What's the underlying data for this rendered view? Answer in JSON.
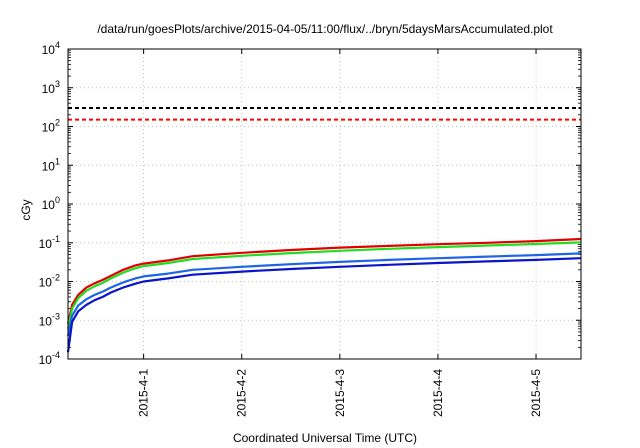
{
  "chart_data": {
    "type": "line",
    "title": "/data/run/goesPlots/archive/2015-04-05/11:00/flux/../bryn/5daysMarsAccumulated.plot",
    "xlabel": "Coordinated Universal Time (UTC)",
    "ylabel": "cGy",
    "yscale": "log",
    "ylim": [
      0.0001,
      10000
    ],
    "xlim": [
      "2015-03-31 05:30",
      "2015-04-05 11:00"
    ],
    "grid": true,
    "legend": "none",
    "x_ticks": [
      "2015-4-1",
      "2015-4-2",
      "2015-4-3",
      "2015-4-4",
      "2015-4-5"
    ],
    "y_ticks": [
      {
        "value": 0.0001,
        "base": "10",
        "exp": "-4"
      },
      {
        "value": 0.001,
        "base": "10",
        "exp": "-3"
      },
      {
        "value": 0.01,
        "base": "10",
        "exp": "-2"
      },
      {
        "value": 0.1,
        "base": "10",
        "exp": "-1"
      },
      {
        "value": 1,
        "base": "10",
        "exp": "0"
      },
      {
        "value": 10,
        "base": "10",
        "exp": "1"
      },
      {
        "value": 100,
        "base": "10",
        "exp": "2"
      },
      {
        "value": 1000,
        "base": "10",
        "exp": "3"
      },
      {
        "value": 10000,
        "base": "10",
        "exp": "4"
      }
    ],
    "reference_lines": [
      {
        "y": 300,
        "color": "#000000",
        "style": "dashed"
      },
      {
        "y": 150,
        "color": "#ff0000",
        "style": "dashed"
      }
    ],
    "series": [
      {
        "color": "#e00000",
        "x": [
          "2015-03-31 05:30",
          "2015-03-31 06:30",
          "2015-03-31 08:00",
          "2015-03-31 10:00",
          "2015-03-31 12:00",
          "2015-03-31 14:00",
          "2015-03-31 16:00",
          "2015-03-31 19:00",
          "2015-03-31 22:00",
          "2015-04-01 00:00",
          "2015-04-01 06:00",
          "2015-04-01 12:00",
          "2015-04-02 00:00",
          "2015-04-02 12:00",
          "2015-04-03 00:00",
          "2015-04-03 12:00",
          "2015-04-04 00:00",
          "2015-04-04 12:00",
          "2015-04-05 00:00",
          "2015-04-05 11:00"
        ],
        "y": [
          0.0008,
          0.0025,
          0.0045,
          0.007,
          0.009,
          0.011,
          0.014,
          0.02,
          0.026,
          0.029,
          0.035,
          0.045,
          0.055,
          0.065,
          0.075,
          0.083,
          0.092,
          0.1,
          0.11,
          0.125
        ]
      },
      {
        "color": "#22dd22",
        "x": [
          "2015-03-31 05:30",
          "2015-03-31 06:30",
          "2015-03-31 08:00",
          "2015-03-31 10:00",
          "2015-03-31 12:00",
          "2015-03-31 14:00",
          "2015-03-31 16:00",
          "2015-03-31 19:00",
          "2015-03-31 22:00",
          "2015-04-01 00:00",
          "2015-04-01 06:00",
          "2015-04-01 12:00",
          "2015-04-02 00:00",
          "2015-04-02 12:00",
          "2015-04-03 00:00",
          "2015-04-03 12:00",
          "2015-04-04 00:00",
          "2015-04-04 12:00",
          "2015-04-05 00:00",
          "2015-04-05 11:00"
        ],
        "y": [
          0.0006,
          0.002,
          0.0037,
          0.0058,
          0.0075,
          0.0092,
          0.012,
          0.017,
          0.022,
          0.025,
          0.03,
          0.038,
          0.046,
          0.054,
          0.062,
          0.07,
          0.077,
          0.085,
          0.093,
          0.102
        ]
      },
      {
        "color": "#1e64e6",
        "x": [
          "2015-03-31 05:30",
          "2015-03-31 06:30",
          "2015-03-31 08:00",
          "2015-03-31 10:00",
          "2015-03-31 12:00",
          "2015-03-31 14:00",
          "2015-03-31 16:00",
          "2015-03-31 19:00",
          "2015-03-31 22:00",
          "2015-04-01 00:00",
          "2015-04-01 06:00",
          "2015-04-01 12:00",
          "2015-04-02 00:00",
          "2015-04-02 12:00",
          "2015-04-03 00:00",
          "2015-04-03 12:00",
          "2015-04-04 00:00",
          "2015-04-04 12:00",
          "2015-04-05 00:00",
          "2015-04-05 11:00"
        ],
        "y": [
          0.0004,
          0.0013,
          0.0024,
          0.0035,
          0.0045,
          0.0055,
          0.007,
          0.0095,
          0.012,
          0.0135,
          0.016,
          0.02,
          0.024,
          0.028,
          0.032,
          0.036,
          0.04,
          0.044,
          0.048,
          0.053
        ]
      },
      {
        "color": "#0a14c8",
        "x": [
          "2015-03-31 05:30",
          "2015-03-31 06:30",
          "2015-03-31 08:00",
          "2015-03-31 10:00",
          "2015-03-31 12:00",
          "2015-03-31 14:00",
          "2015-03-31 16:00",
          "2015-03-31 19:00",
          "2015-03-31 22:00",
          "2015-04-01 00:00",
          "2015-04-01 06:00",
          "2015-04-01 12:00",
          "2015-04-02 00:00",
          "2015-04-02 12:00",
          "2015-04-03 00:00",
          "2015-04-03 12:00",
          "2015-04-04 00:00",
          "2015-04-04 12:00",
          "2015-04-05 00:00",
          "2015-04-05 11:00"
        ],
        "y": [
          0.00015,
          0.0009,
          0.0017,
          0.0025,
          0.0033,
          0.004,
          0.0052,
          0.007,
          0.0088,
          0.01,
          0.012,
          0.015,
          0.018,
          0.021,
          0.024,
          0.027,
          0.03,
          0.033,
          0.036,
          0.04
        ]
      }
    ]
  }
}
